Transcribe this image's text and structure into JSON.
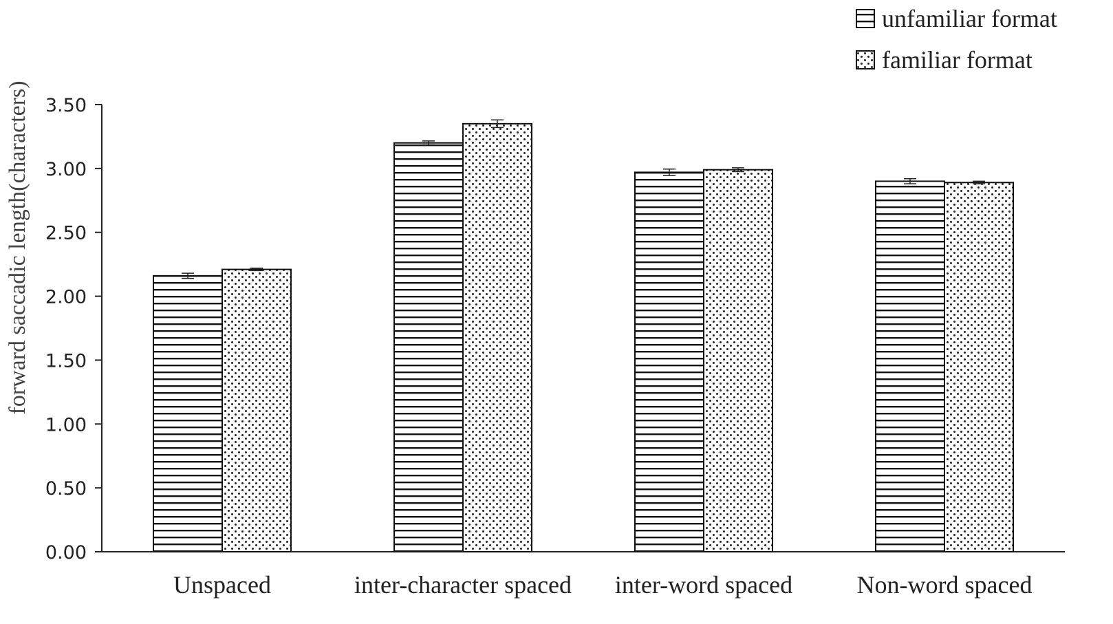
{
  "chart_data": {
    "type": "bar",
    "title": "",
    "xlabel": "",
    "ylabel": "forward saccadic length(characters)",
    "ylim": [
      0,
      3.5
    ],
    "yticks": [
      "0.00",
      "0.50",
      "1.00",
      "1.50",
      "2.00",
      "2.50",
      "3.00",
      "3.50"
    ],
    "categories": [
      "Unspaced",
      "inter-character spaced",
      "inter-word spaced",
      "Non-word spaced"
    ],
    "series": [
      {
        "name": "unfamiliar format",
        "pattern": "horizontal-stripes",
        "values": [
          2.16,
          3.2,
          2.97,
          2.9
        ],
        "errors": [
          0.02,
          0.015,
          0.025,
          0.02
        ]
      },
      {
        "name": "familiar format",
        "pattern": "dots",
        "values": [
          2.21,
          3.35,
          2.99,
          2.89
        ],
        "errors": [
          0.01,
          0.03,
          0.015,
          0.01
        ]
      }
    ],
    "legend_position": "top-right",
    "grid": false
  }
}
